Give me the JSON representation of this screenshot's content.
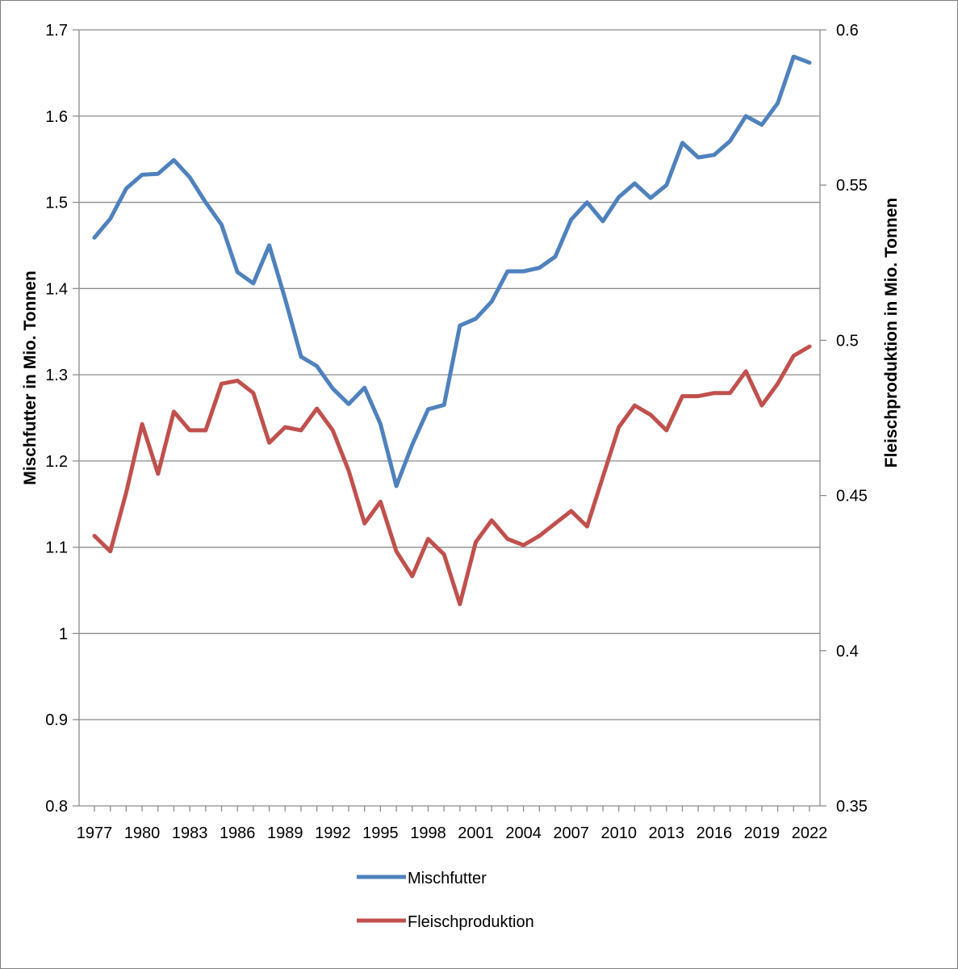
{
  "chart_data": {
    "type": "line",
    "xlabel": "",
    "ylabel": "Mischfutter in Mio. Tonnen",
    "y2label": "Fleischproduktion in Mio. Tonnen",
    "ylim": [
      0.8,
      1.7
    ],
    "y2lim": [
      0.35,
      0.6
    ],
    "yticks": [
      "0.8",
      "0.9",
      "1",
      "1.1",
      "1.2",
      "1.3",
      "1.4",
      "1.5",
      "1.6",
      "1.7"
    ],
    "y2ticks": [
      "0.35",
      "0.4",
      "0.45",
      "0.5",
      "0.55",
      "0.6"
    ],
    "xticks": [
      "1977",
      "1980",
      "1983",
      "1986",
      "1989",
      "1992",
      "1995",
      "1998",
      "2001",
      "2004",
      "2007",
      "2010",
      "2013",
      "2016",
      "2019",
      "2022"
    ],
    "grid": "horizontal",
    "legend_position": "bottom",
    "x": [
      1977,
      1978,
      1979,
      1980,
      1981,
      1982,
      1983,
      1984,
      1985,
      1986,
      1987,
      1988,
      1989,
      1990,
      1991,
      1992,
      1993,
      1994,
      1995,
      1996,
      1997,
      1998,
      1999,
      2000,
      2001,
      2002,
      2003,
      2004,
      2005,
      2006,
      2007,
      2008,
      2009,
      2010,
      2011,
      2012,
      2013,
      2014,
      2015,
      2016,
      2017,
      2018,
      2019,
      2020,
      2021,
      2022
    ],
    "series": [
      {
        "name": "Mischfutter",
        "axis": "left",
        "color": "#4f81bd",
        "values": [
          1.459,
          1.481,
          1.516,
          1.532,
          1.533,
          1.549,
          1.529,
          1.5,
          1.474,
          1.419,
          1.406,
          1.45,
          1.388,
          1.321,
          1.31,
          1.284,
          1.266,
          1.285,
          1.243,
          1.171,
          1.219,
          1.26,
          1.265,
          1.357,
          1.365,
          1.385,
          1.42,
          1.42,
          1.424,
          1.437,
          1.48,
          1.5,
          1.478,
          1.506,
          1.522,
          1.505,
          1.52,
          1.569,
          1.552,
          1.555,
          1.571,
          1.6,
          1.59,
          1.615,
          1.669,
          1.662
        ]
      },
      {
        "name": "Fleischproduktion",
        "axis": "right",
        "color": "#c0504d",
        "values": [
          0.437,
          0.432,
          0.451,
          0.473,
          0.457,
          0.477,
          0.471,
          0.471,
          0.486,
          0.487,
          0.483,
          0.467,
          0.472,
          0.471,
          0.478,
          0.471,
          0.458,
          0.441,
          0.448,
          0.432,
          0.424,
          0.436,
          0.431,
          0.415,
          0.435,
          0.442,
          0.436,
          0.434,
          0.437,
          0.441,
          0.445,
          0.44,
          0.456,
          0.472,
          0.479,
          0.476,
          0.471,
          0.482,
          0.482,
          0.483,
          0.483,
          0.49,
          0.479,
          0.486,
          0.495,
          0.498
        ]
      }
    ]
  }
}
